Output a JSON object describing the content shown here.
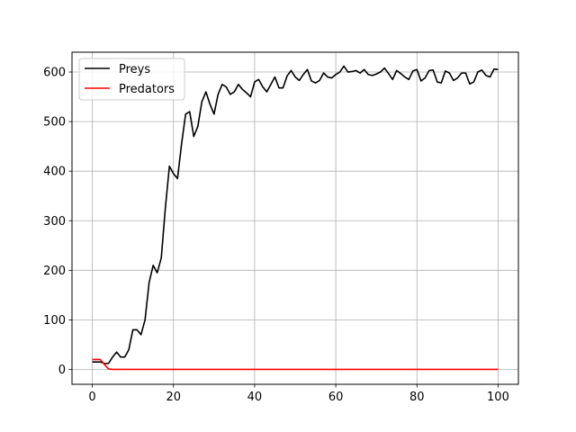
{
  "chart_data": {
    "type": "line",
    "title": "",
    "xlabel": "",
    "ylabel": "",
    "xlim": [
      -5,
      105
    ],
    "ylim": [
      -30,
      640
    ],
    "xticks": [
      0,
      20,
      40,
      60,
      80,
      100
    ],
    "yticks": [
      0,
      100,
      200,
      300,
      400,
      500,
      600
    ],
    "grid": true,
    "legend": "top-left",
    "series": [
      {
        "name": "Preys",
        "color": "#000000",
        "x": [
          0,
          1,
          2,
          3,
          4,
          5,
          6,
          7,
          8,
          9,
          10,
          11,
          12,
          13,
          14,
          15,
          16,
          17,
          18,
          19,
          20,
          21,
          22,
          23,
          24,
          25,
          26,
          27,
          28,
          29,
          30,
          31,
          32,
          33,
          34,
          35,
          36,
          37,
          38,
          39,
          40,
          41,
          42,
          43,
          44,
          45,
          46,
          47,
          48,
          49,
          50,
          51,
          52,
          53,
          54,
          55,
          56,
          57,
          58,
          59,
          60,
          61,
          62,
          63,
          64,
          65,
          66,
          67,
          68,
          69,
          70,
          71,
          72,
          73,
          74,
          75,
          76,
          77,
          78,
          79,
          80,
          81,
          82,
          83,
          84,
          85,
          86,
          87,
          88,
          89,
          90,
          91,
          92,
          93,
          94,
          95,
          96,
          97,
          98,
          99,
          100
        ],
        "values": [
          15,
          15,
          15,
          12,
          12,
          25,
          35,
          25,
          25,
          40,
          80,
          80,
          70,
          100,
          175,
          210,
          195,
          225,
          325,
          410,
          395,
          385,
          455,
          515,
          520,
          470,
          490,
          540,
          560,
          535,
          515,
          555,
          575,
          570,
          555,
          560,
          575,
          565,
          558,
          550,
          580,
          585,
          570,
          560,
          575,
          590,
          568,
          568,
          592,
          603,
          590,
          583,
          595,
          605,
          582,
          578,
          583,
          598,
          590,
          588,
          595,
          600,
          612,
          600,
          601,
          603,
          598,
          605,
          595,
          593,
          596,
          600,
          608,
          597,
          585,
          603,
          597,
          590,
          585,
          602,
          605,
          582,
          588,
          603,
          604,
          580,
          578,
          602,
          598,
          583,
          588,
          598,
          598,
          576,
          580,
          600,
          604,
          593,
          590,
          606,
          605
        ]
      },
      {
        "name": "Predators",
        "color": "#ff0000",
        "x": [
          0,
          1,
          2,
          3,
          4,
          5,
          6,
          7,
          8,
          9,
          10,
          11,
          12,
          13,
          14,
          15,
          16,
          17,
          18,
          19,
          20,
          21,
          22,
          23,
          24,
          25,
          26,
          27,
          28,
          29,
          30,
          31,
          32,
          33,
          34,
          35,
          36,
          37,
          38,
          39,
          40,
          41,
          42,
          43,
          44,
          45,
          46,
          47,
          48,
          49,
          50,
          51,
          52,
          53,
          54,
          55,
          56,
          57,
          58,
          59,
          60,
          61,
          62,
          63,
          64,
          65,
          66,
          67,
          68,
          69,
          70,
          71,
          72,
          73,
          74,
          75,
          76,
          77,
          78,
          79,
          80,
          81,
          82,
          83,
          84,
          85,
          86,
          87,
          88,
          89,
          90,
          91,
          92,
          93,
          94,
          95,
          96,
          97,
          98,
          99,
          100
        ],
        "values": [
          20,
          20,
          20,
          10,
          1,
          0,
          0,
          0,
          0,
          0,
          0,
          0,
          0,
          0,
          0,
          0,
          0,
          0,
          0,
          0,
          0,
          0,
          0,
          0,
          0,
          0,
          0,
          0,
          0,
          0,
          0,
          0,
          0,
          0,
          0,
          0,
          0,
          0,
          0,
          0,
          0,
          0,
          0,
          0,
          0,
          0,
          0,
          0,
          0,
          0,
          0,
          0,
          0,
          0,
          0,
          0,
          0,
          0,
          0,
          0,
          0,
          0,
          0,
          0,
          0,
          0,
          0,
          0,
          0,
          0,
          0,
          0,
          0,
          0,
          0,
          0,
          0,
          0,
          0,
          0,
          0,
          0,
          0,
          0,
          0,
          0,
          0,
          0,
          0,
          0,
          0,
          0,
          0,
          0,
          0,
          0,
          0,
          0,
          0,
          0,
          0
        ]
      }
    ]
  }
}
